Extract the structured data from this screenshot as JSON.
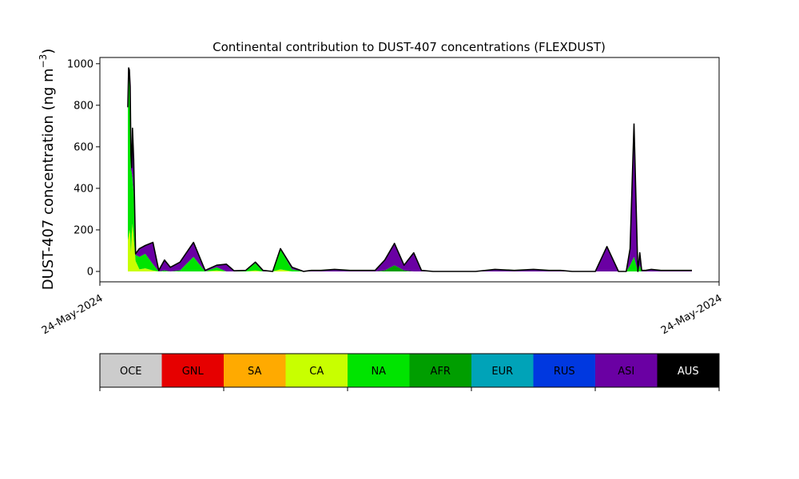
{
  "chart_data": {
    "type": "area",
    "title": "Continental contribution to DUST-407 concentrations (FLEXDUST)",
    "ylabel": "DUST-407 concentration (ng m^-3)",
    "ylabel_main": "DUST-407 concentration (ng m",
    "ylabel_exp": "−3",
    "ylabel_tail": ")",
    "xlabel": "",
    "x_tick_labels": [
      "24-May-2024",
      "24-May-2024"
    ],
    "ylim": [
      -50,
      1030
    ],
    "yticks": [
      0,
      200,
      400,
      600,
      800,
      1000
    ],
    "grid": false,
    "stacked": true,
    "x": [
      0.0,
      0.2,
      0.4,
      0.6,
      0.8,
      1.0,
      1.2,
      1.5,
      2.0,
      3.0,
      4.5,
      6.5,
      8.0,
      9.5,
      11.0,
      13.5,
      17.0,
      20.0,
      23.0,
      25.5,
      27.5,
      30.5,
      33.0,
      35.0,
      37.5,
      39.5,
      42.5,
      45.5,
      47.5,
      50.0,
      53.5,
      57.5,
      61.0,
      64.0,
      66.5,
      69.0,
      71.5,
      74.0,
      76.0,
      79.0,
      82.0,
      85.0,
      90.0,
      95.0,
      100.0,
      105.0,
      109.0,
      112.0,
      115.0,
      118.0,
      121.0,
      124.0,
      127.0,
      129.0,
      130.0,
      131.0,
      132.0,
      132.5,
      133.0,
      133.5,
      134.0,
      135.5,
      138.0,
      142.0,
      146.0
    ],
    "series": [
      {
        "name": "CA",
        "color": "#c8ff00",
        "values": [
          150,
          170,
          200,
          180,
          90,
          180,
          230,
          160,
          50,
          10,
          15,
          5,
          0,
          0,
          0,
          0,
          0,
          0,
          5,
          0,
          0,
          0,
          5,
          0,
          0,
          10,
          0,
          0,
          0,
          0,
          0,
          0,
          0,
          0,
          0,
          0,
          0,
          0,
          0,
          0,
          0,
          0,
          0,
          0,
          0,
          0,
          0,
          0,
          0,
          0,
          0,
          0,
          0,
          0,
          0,
          0,
          0,
          0,
          0,
          0,
          0,
          0,
          0,
          0,
          0
        ]
      },
      {
        "name": "NA",
        "color": "#00e400",
        "values": [
          640,
          780,
          770,
          700,
          400,
          300,
          220,
          220,
          30,
          60,
          70,
          30,
          0,
          5,
          0,
          5,
          70,
          0,
          15,
          0,
          0,
          5,
          35,
          0,
          0,
          95,
          10,
          0,
          0,
          0,
          0,
          0,
          0,
          0,
          0,
          0,
          0,
          0,
          0,
          0,
          0,
          0,
          0,
          0,
          0,
          0,
          0,
          0,
          0,
          0,
          0,
          0,
          0,
          0,
          30,
          70,
          0,
          30,
          0,
          0,
          0,
          0,
          0,
          0,
          0
        ]
      },
      {
        "name": "AFR",
        "color": "#009e00",
        "values": [
          0,
          0,
          0,
          0,
          0,
          0,
          0,
          0,
          0,
          0,
          0,
          0,
          0,
          0,
          0,
          0,
          0,
          0,
          0,
          0,
          0,
          0,
          0,
          0,
          0,
          0,
          0,
          0,
          0,
          0,
          0,
          0,
          0,
          0,
          5,
          30,
          5,
          0,
          0,
          0,
          0,
          0,
          0,
          0,
          0,
          0,
          0,
          0,
          0,
          0,
          0,
          0,
          0,
          0,
          0,
          0,
          0,
          0,
          0,
          0,
          0,
          0,
          0,
          0,
          0
        ]
      },
      {
        "name": "ASI",
        "color": "#6a00a3",
        "values": [
          0,
          20,
          0,
          10,
          60,
          20,
          240,
          160,
          5,
          40,
          40,
          105,
          5,
          50,
          20,
          40,
          70,
          5,
          10,
          35,
          3,
          0,
          5,
          5,
          0,
          5,
          10,
          0,
          5,
          5,
          10,
          5,
          5,
          5,
          50,
          105,
          25,
          90,
          5,
          0,
          0,
          0,
          0,
          10,
          5,
          10,
          5,
          5,
          0,
          0,
          0,
          120,
          0,
          0,
          80,
          580,
          0,
          60,
          5,
          5,
          5,
          10,
          5,
          5,
          5
        ]
      },
      {
        "name": "AUS",
        "color": "#000000",
        "values": [
          0,
          10,
          0,
          0,
          10,
          0,
          0,
          0,
          0,
          0,
          0,
          0,
          0,
          0,
          0,
          0,
          0,
          0,
          0,
          0,
          0,
          0,
          0,
          0,
          0,
          0,
          0,
          0,
          0,
          0,
          0,
          0,
          0,
          0,
          0,
          0,
          0,
          0,
          0,
          0,
          0,
          0,
          0,
          0,
          0,
          0,
          0,
          0,
          0,
          0,
          0,
          0,
          0,
          0,
          0,
          60,
          0,
          0,
          0,
          0,
          0,
          0,
          0,
          0,
          0
        ]
      }
    ],
    "legend": [
      {
        "label": "OCE",
        "color": "#cccccc",
        "text_color": "#000000"
      },
      {
        "label": "GNL",
        "color": "#e60000",
        "text_color": "#000000"
      },
      {
        "label": "SA",
        "color": "#ffaa00",
        "text_color": "#000000"
      },
      {
        "label": "CA",
        "color": "#c8ff00",
        "text_color": "#000000"
      },
      {
        "label": "NA",
        "color": "#00e400",
        "text_color": "#000000"
      },
      {
        "label": "AFR",
        "color": "#009e00",
        "text_color": "#000000"
      },
      {
        "label": "EUR",
        "color": "#00a3b8",
        "text_color": "#000000"
      },
      {
        "label": "RUS",
        "color": "#0038e0",
        "text_color": "#000000"
      },
      {
        "label": "ASI",
        "color": "#6a00a3",
        "text_color": "#000000"
      },
      {
        "label": "AUS",
        "color": "#000000",
        "text_color": "#ffffff"
      }
    ],
    "legend_placement": "bottom"
  }
}
